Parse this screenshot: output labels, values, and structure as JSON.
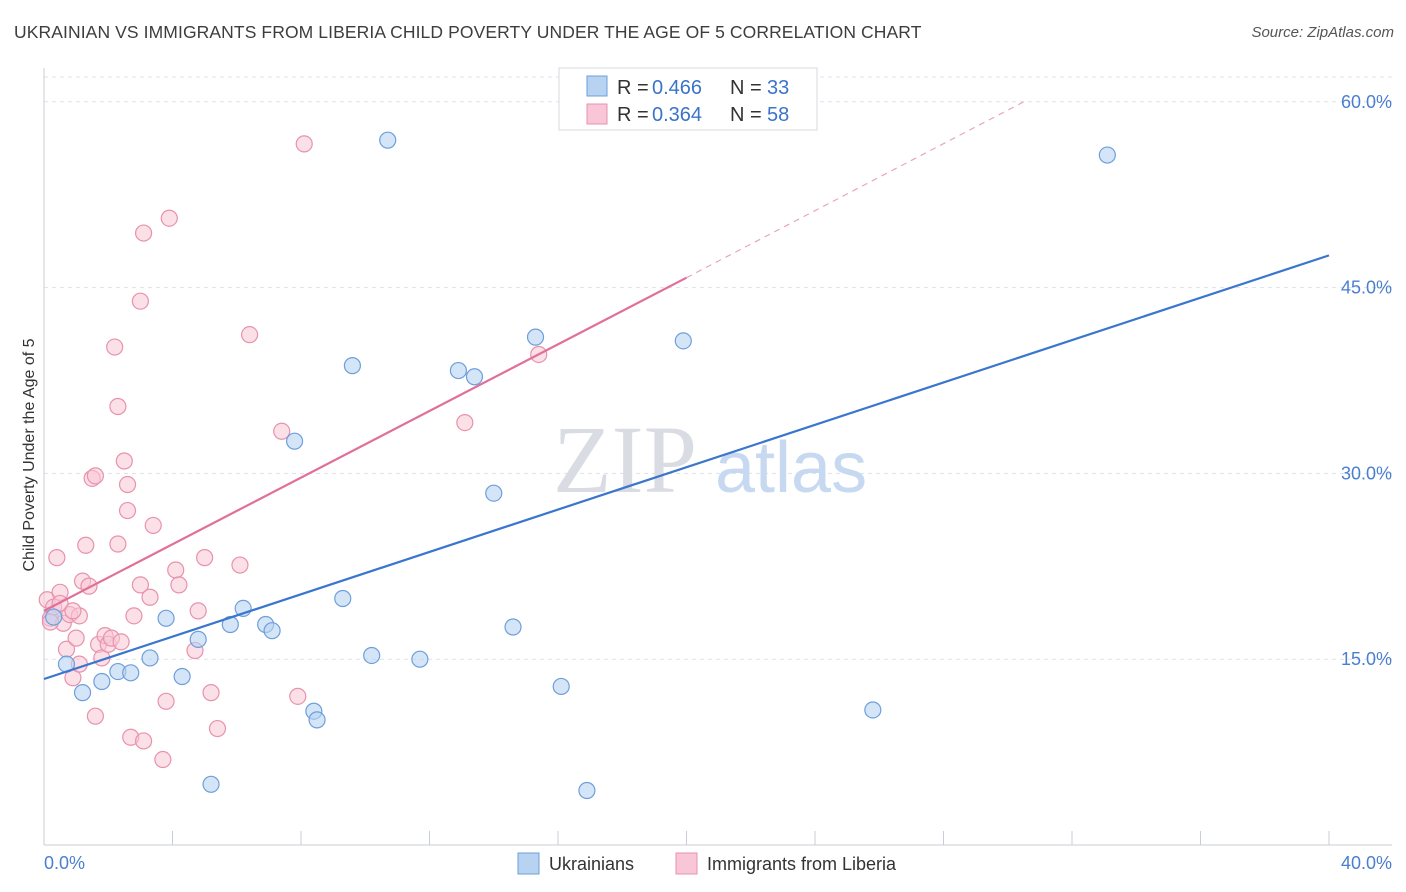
{
  "title": "UKRAINIAN VS IMMIGRANTS FROM LIBERIA CHILD POVERTY UNDER THE AGE OF 5 CORRELATION CHART",
  "source": "Source: ZipAtlas.com",
  "watermark": {
    "zip": "ZIP",
    "atlas": "atlas"
  },
  "colors": {
    "ukr_fill": "#b8d3f2",
    "ukr_stroke": "#6d9fdb",
    "ukr_line": "#3a76cd",
    "lib_fill": "#f8c6d6",
    "lib_stroke": "#e892ad",
    "lib_line": "#e0709a",
    "grid": "#dde1e8",
    "tick_text": "#4a7fcf"
  },
  "legend": {
    "rows": [
      {
        "r_label": "R =",
        "r_value": "0.466",
        "n_label": "N =",
        "n_value": "33"
      },
      {
        "r_label": "R =",
        "r_value": "0.364",
        "n_label": "N =",
        "n_value": "58"
      }
    ]
  },
  "bottom_legend": [
    "Ukrainians",
    "Immigrants from Liberia"
  ],
  "chart_data": {
    "type": "scatter",
    "title": "UKRAINIAN VS IMMIGRANTS FROM LIBERIA CHILD POVERTY UNDER THE AGE OF 5 CORRELATION CHART",
    "xlabel": "",
    "ylabel": "Child Poverty Under the Age of 5",
    "xlim": [
      0,
      40
    ],
    "ylim": [
      0,
      62
    ],
    "x_tick_labels": [
      "0.0%",
      "40.0%"
    ],
    "y_ticks": [
      15,
      30,
      45,
      60
    ],
    "y_tick_labels": [
      "15.0%",
      "30.0%",
      "45.0%",
      "60.0%"
    ],
    "series": [
      {
        "name": "Ukrainians",
        "r": 0.466,
        "n": 33,
        "trend": {
          "x0": 0,
          "y0": 13.4,
          "x1": 40,
          "y1": 47.6
        },
        "points": [
          [
            0.3,
            18.4
          ],
          [
            0.7,
            14.6
          ],
          [
            1.2,
            12.3
          ],
          [
            1.8,
            13.2
          ],
          [
            2.3,
            14.0
          ],
          [
            2.7,
            13.9
          ],
          [
            3.3,
            15.1
          ],
          [
            3.8,
            18.3
          ],
          [
            4.3,
            13.6
          ],
          [
            4.8,
            16.6
          ],
          [
            5.2,
            4.9
          ],
          [
            5.8,
            17.8
          ],
          [
            6.2,
            19.1
          ],
          [
            6.9,
            17.8
          ],
          [
            7.1,
            17.3
          ],
          [
            7.8,
            32.6
          ],
          [
            8.4,
            10.8
          ],
          [
            8.5,
            10.1
          ],
          [
            9.3,
            19.9
          ],
          [
            9.6,
            38.7
          ],
          [
            10.2,
            15.3
          ],
          [
            10.7,
            56.9
          ],
          [
            11.7,
            15.0
          ],
          [
            12.9,
            38.3
          ],
          [
            13.4,
            37.8
          ],
          [
            14.0,
            28.4
          ],
          [
            14.6,
            17.6
          ],
          [
            15.3,
            41.0
          ],
          [
            16.1,
            12.8
          ],
          [
            16.9,
            4.4
          ],
          [
            19.9,
            40.7
          ],
          [
            25.8,
            10.9
          ],
          [
            33.1,
            55.7
          ]
        ]
      },
      {
        "name": "Immigrants from Liberia",
        "r": 0.364,
        "n": 58,
        "trend": {
          "x0": 0,
          "y0": 18.9,
          "x1": 20,
          "y1": 45.8
        },
        "trend_dashed": {
          "x0": 20,
          "y0": 45.8,
          "x1": 30.5,
          "y1": 60.0
        },
        "points": [
          [
            0.1,
            19.8
          ],
          [
            0.2,
            18.3
          ],
          [
            0.3,
            19.2
          ],
          [
            0.4,
            23.2
          ],
          [
            0.5,
            20.4
          ],
          [
            0.6,
            17.9
          ],
          [
            0.7,
            15.8
          ],
          [
            0.8,
            18.6
          ],
          [
            0.9,
            13.5
          ],
          [
            1.0,
            16.7
          ],
          [
            1.1,
            14.6
          ],
          [
            1.2,
            21.3
          ],
          [
            1.3,
            24.2
          ],
          [
            1.4,
            20.9
          ],
          [
            1.5,
            29.6
          ],
          [
            1.6,
            10.4
          ],
          [
            1.7,
            16.2
          ],
          [
            1.6,
            29.8
          ],
          [
            1.8,
            15.1
          ],
          [
            1.9,
            16.9
          ],
          [
            2.0,
            16.2
          ],
          [
            2.1,
            16.7
          ],
          [
            2.2,
            40.2
          ],
          [
            2.3,
            24.3
          ],
          [
            2.3,
            35.4
          ],
          [
            2.4,
            16.4
          ],
          [
            2.5,
            31.0
          ],
          [
            2.6,
            27.0
          ],
          [
            2.6,
            29.1
          ],
          [
            2.7,
            8.7
          ],
          [
            2.8,
            18.5
          ],
          [
            3.0,
            21.0
          ],
          [
            3.0,
            43.9
          ],
          [
            3.1,
            49.4
          ],
          [
            3.1,
            8.4
          ],
          [
            3.3,
            20.0
          ],
          [
            3.4,
            25.8
          ],
          [
            3.7,
            6.9
          ],
          [
            3.8,
            11.6
          ],
          [
            3.9,
            50.6
          ],
          [
            4.1,
            22.2
          ],
          [
            4.2,
            21.0
          ],
          [
            4.7,
            15.7
          ],
          [
            4.8,
            18.9
          ],
          [
            5.0,
            23.2
          ],
          [
            5.2,
            12.3
          ],
          [
            5.4,
            9.4
          ],
          [
            6.1,
            22.6
          ],
          [
            6.4,
            41.2
          ],
          [
            7.4,
            33.4
          ],
          [
            7.9,
            12.0
          ],
          [
            8.1,
            56.6
          ],
          [
            13.1,
            34.1
          ],
          [
            15.4,
            39.6
          ],
          [
            0.2,
            18.0
          ],
          [
            0.5,
            19.5
          ],
          [
            1.1,
            18.5
          ],
          [
            0.9,
            18.9
          ]
        ]
      }
    ]
  }
}
